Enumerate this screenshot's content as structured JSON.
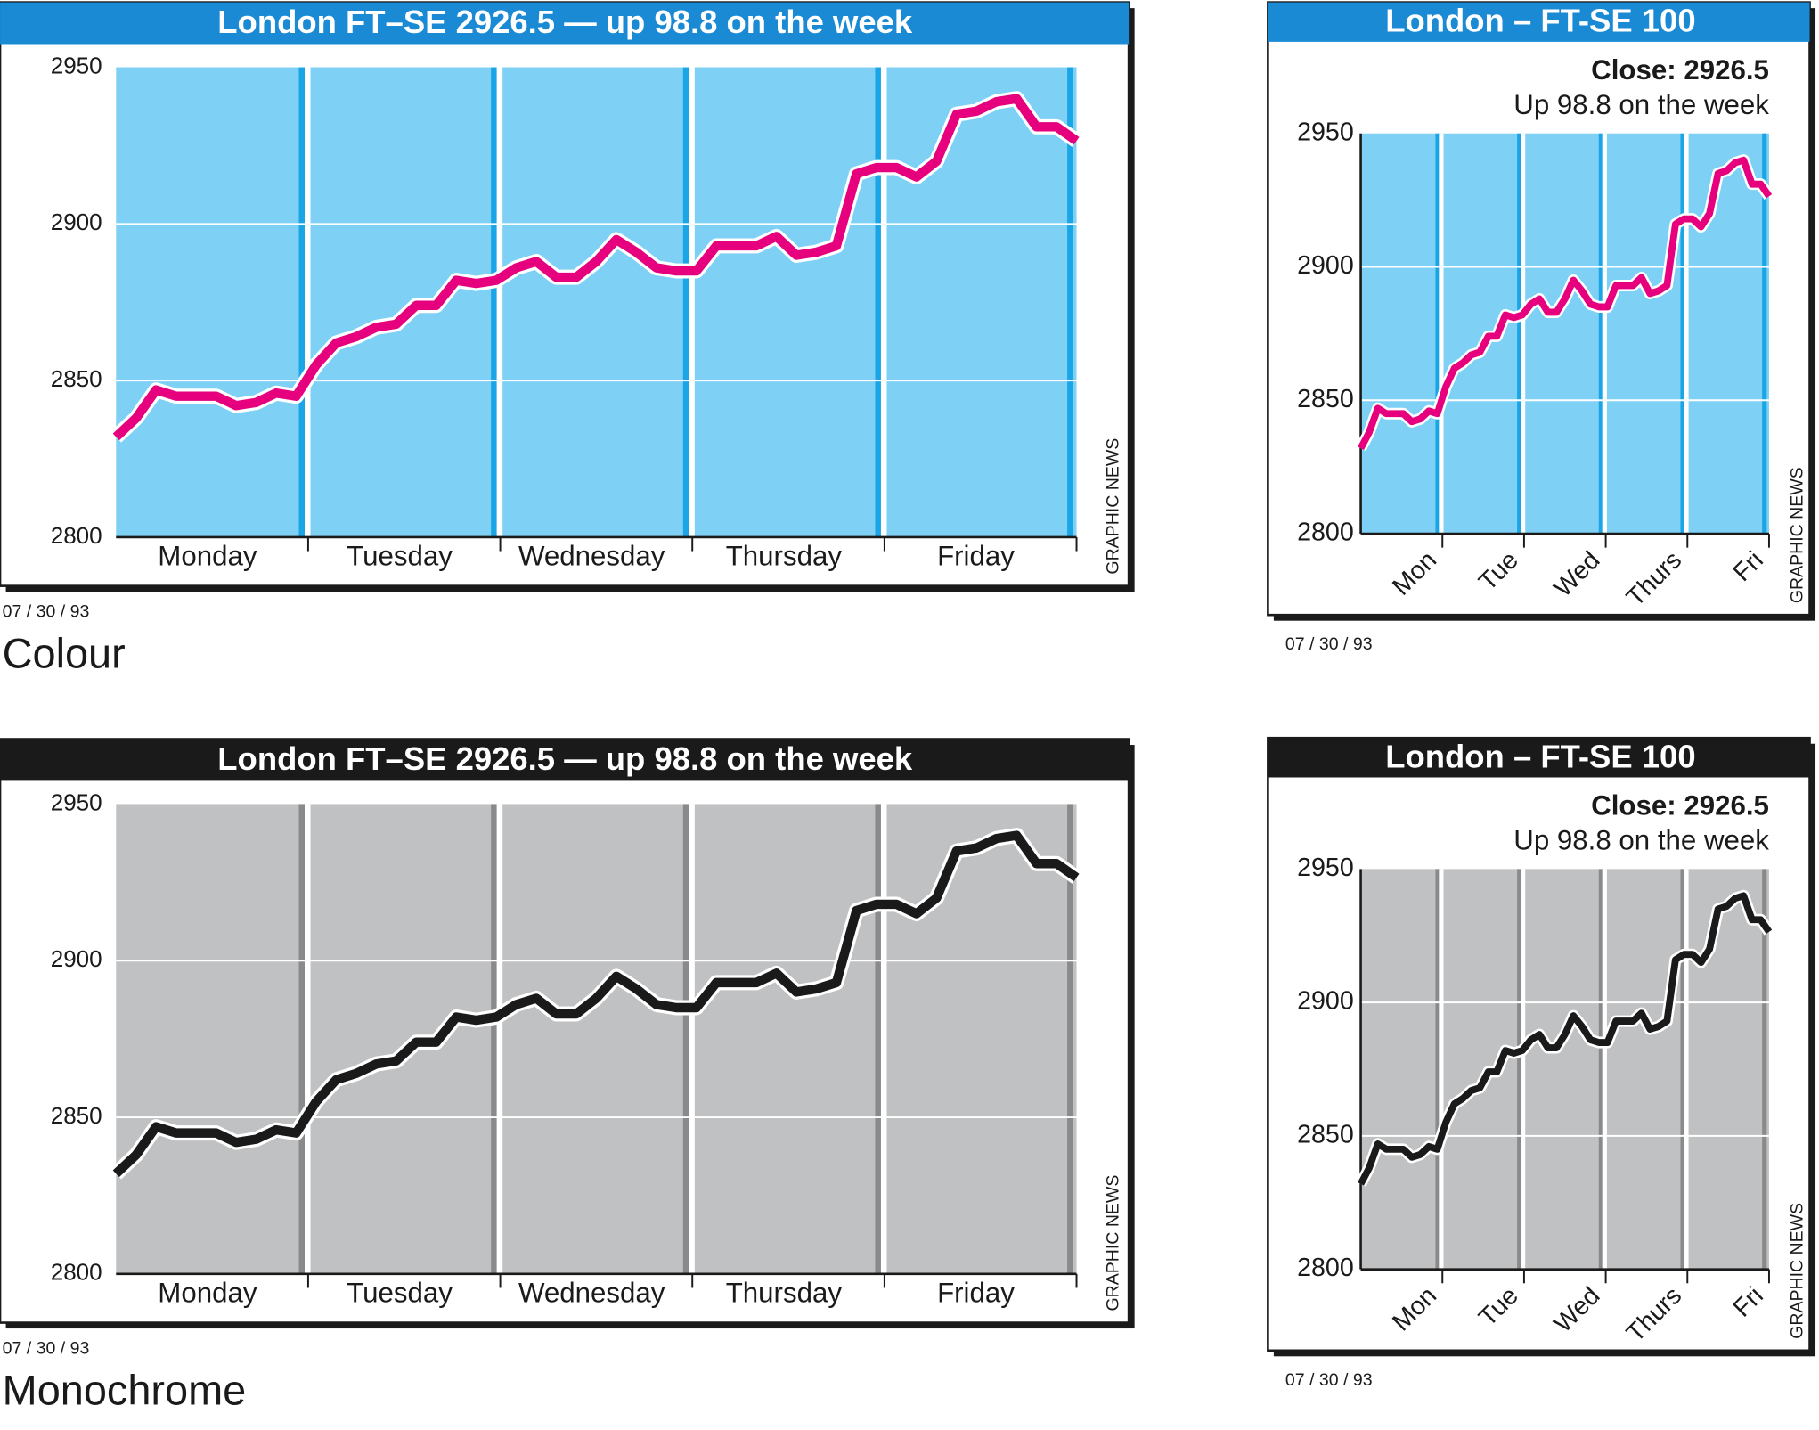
{
  "chart_data": [
    {
      "type": "line",
      "title": "London FT–SE 2926.5 — up 98.8 on the week",
      "categories": [
        "Monday",
        "Tuesday",
        "Wednesday",
        "Thursday",
        "Friday"
      ],
      "values": [
        [
          2832,
          2838,
          2847,
          2845,
          2845,
          2845,
          2842,
          2843,
          2846,
          2845
        ],
        [
          2855,
          2862,
          2864,
          2867,
          2868,
          2874,
          2874,
          2882,
          2881
        ],
        [
          2882,
          2886,
          2888,
          2883,
          2883,
          2888,
          2895,
          2891,
          2886,
          2885
        ],
        [
          2885,
          2893,
          2893,
          2893,
          2896,
          2890,
          2891,
          2893,
          2916,
          2918
        ],
        [
          2918,
          2915,
          2920,
          2935,
          2936,
          2939,
          2940,
          2931,
          2931,
          2926.5
        ]
      ],
      "color": "#e6007e",
      "plot_color": "#7fd0f5",
      "stripe_color": "#1aa6e6",
      "title_color": "#1a8ad4",
      "ylim": [
        2800,
        2950
      ],
      "yticks": [
        2800,
        2850,
        2900,
        2950
      ],
      "grid": true,
      "source": "GRAPHIC NEWS",
      "date": "07 / 30 / 93",
      "caption": "Colour"
    },
    {
      "type": "line",
      "title": "London – FT-SE 100",
      "subtitle": [
        "Close: 2926.5",
        "Up 98.8 on the week"
      ],
      "categories": [
        "Mon",
        "Tue",
        "Wed",
        "Thurs",
        "Fri"
      ],
      "values": [
        [
          2832,
          2838,
          2847,
          2845,
          2845,
          2845,
          2842,
          2843,
          2846,
          2845
        ],
        [
          2855,
          2862,
          2864,
          2867,
          2868,
          2874,
          2874,
          2882,
          2881
        ],
        [
          2882,
          2886,
          2888,
          2883,
          2883,
          2888,
          2895,
          2891,
          2886,
          2885
        ],
        [
          2885,
          2893,
          2893,
          2893,
          2896,
          2890,
          2891,
          2893,
          2916,
          2918
        ],
        [
          2918,
          2915,
          2920,
          2935,
          2936,
          2939,
          2940,
          2931,
          2931,
          2926.5
        ]
      ],
      "color": "#e6007e",
      "plot_color": "#7fd0f5",
      "stripe_color": "#1aa6e6",
      "title_color": "#1a8ad4",
      "ylim": [
        2800,
        2950
      ],
      "yticks": [
        2800,
        2850,
        2900,
        2950
      ],
      "grid": true,
      "source": "GRAPHIC NEWS",
      "date": "07 / 30 / 93"
    },
    {
      "type": "line",
      "title": "London FT–SE 2926.5 — up 98.8 on the week",
      "categories": [
        "Monday",
        "Tuesday",
        "Wednesday",
        "Thursday",
        "Friday"
      ],
      "values": [
        [
          2832,
          2838,
          2847,
          2845,
          2845,
          2845,
          2842,
          2843,
          2846,
          2845
        ],
        [
          2855,
          2862,
          2864,
          2867,
          2868,
          2874,
          2874,
          2882,
          2881
        ],
        [
          2882,
          2886,
          2888,
          2883,
          2883,
          2888,
          2895,
          2891,
          2886,
          2885
        ],
        [
          2885,
          2893,
          2893,
          2893,
          2896,
          2890,
          2891,
          2893,
          2916,
          2918
        ],
        [
          2918,
          2915,
          2920,
          2935,
          2936,
          2939,
          2940,
          2931,
          2931,
          2926.5
        ]
      ],
      "color": "#1a1a1a",
      "plot_color": "#c0c1c3",
      "stripe_color": "#8a8a8a",
      "title_color": "#1a1a1a",
      "ylim": [
        2800,
        2950
      ],
      "yticks": [
        2800,
        2850,
        2900,
        2950
      ],
      "grid": true,
      "source": "GRAPHIC NEWS",
      "date": "07 / 30 / 93",
      "caption": "Monochrome"
    },
    {
      "type": "line",
      "title": "London – FT-SE 100",
      "subtitle": [
        "Close: 2926.5",
        "Up 98.8 on the week"
      ],
      "categories": [
        "Mon",
        "Tue",
        "Wed",
        "Thurs",
        "Fri"
      ],
      "values": [
        [
          2832,
          2838,
          2847,
          2845,
          2845,
          2845,
          2842,
          2843,
          2846,
          2845
        ],
        [
          2855,
          2862,
          2864,
          2867,
          2868,
          2874,
          2874,
          2882,
          2881
        ],
        [
          2882,
          2886,
          2888,
          2883,
          2883,
          2888,
          2895,
          2891,
          2886,
          2885
        ],
        [
          2885,
          2893,
          2893,
          2893,
          2896,
          2890,
          2891,
          2893,
          2916,
          2918
        ],
        [
          2918,
          2915,
          2920,
          2935,
          2936,
          2939,
          2940,
          2931,
          2931,
          2926.5
        ]
      ],
      "color": "#1a1a1a",
      "plot_color": "#c0c1c3",
      "stripe_color": "#8a8a8a",
      "title_color": "#1a1a1a",
      "ylim": [
        2800,
        2950
      ],
      "yticks": [
        2800,
        2850,
        2900,
        2950
      ],
      "grid": true,
      "source": "GRAPHIC NEWS",
      "date": "07 / 30 / 93"
    }
  ]
}
